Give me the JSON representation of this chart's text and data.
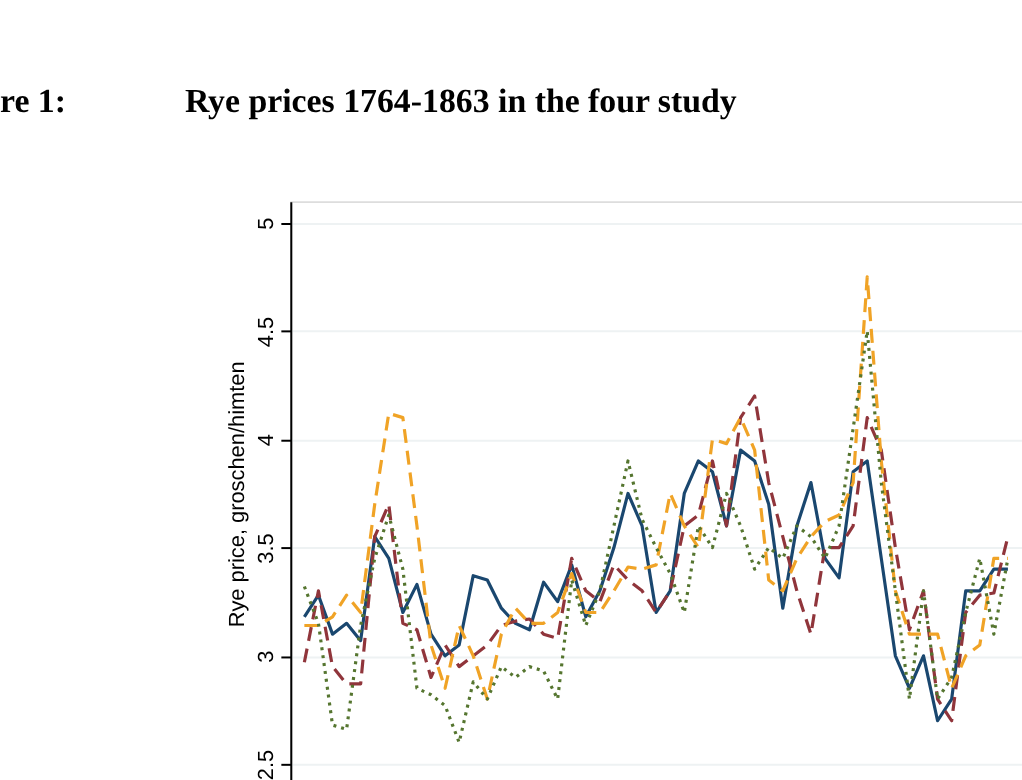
{
  "chart_data": {
    "type": "line",
    "title": "Rye prices 1764-1863 in the four study",
    "annotations": [
      "re 1:"
    ],
    "ylabel": "Rye price, groschen/himten",
    "categories": [
      null,
      null,
      null,
      null,
      null,
      null,
      null,
      null,
      null,
      null,
      null,
      null,
      null,
      null,
      null,
      null,
      null,
      null,
      null,
      null,
      null,
      null,
      null,
      null,
      null,
      null,
      null,
      null,
      null,
      null,
      null,
      null,
      null,
      null,
      null,
      null,
      null,
      null,
      null,
      null,
      null,
      null,
      null,
      null,
      null,
      null,
      null,
      null,
      null,
      null,
      null
    ],
    "series": [
      {
        "color": "#1a476f",
        "line_style": "solid",
        "values": [
          3.18,
          3.28,
          3.1,
          3.15,
          3.07,
          3.55,
          3.45,
          3.2,
          3.33,
          3.1,
          3.0,
          3.05,
          3.37,
          3.35,
          3.22,
          3.15,
          3.12,
          3.34,
          3.25,
          3.42,
          3.18,
          3.3,
          3.5,
          3.75,
          3.6,
          3.2,
          3.3,
          3.75,
          3.9,
          3.85,
          3.6,
          3.95,
          3.9,
          3.7,
          3.22,
          3.6,
          3.8,
          3.45,
          3.36,
          3.85,
          3.9,
          3.45,
          3.0,
          2.85,
          3.0,
          2.7,
          2.8,
          3.3,
          3.3,
          3.4,
          3.4
        ]
      },
      {
        "color": "#90353b",
        "line_style": "dashed",
        "values": [
          2.97,
          3.3,
          2.95,
          2.87,
          2.87,
          3.55,
          3.7,
          3.15,
          3.12,
          2.9,
          3.05,
          2.95,
          3.0,
          3.05,
          3.14,
          3.16,
          3.17,
          3.1,
          3.08,
          3.45,
          3.3,
          3.25,
          3.42,
          3.35,
          3.3,
          3.2,
          3.3,
          3.6,
          3.65,
          3.9,
          3.6,
          4.1,
          4.2,
          3.8,
          3.55,
          3.3,
          3.1,
          3.5,
          3.5,
          3.6,
          4.1,
          3.95,
          3.5,
          3.12,
          3.3,
          2.8,
          2.7,
          3.2,
          3.28,
          3.29,
          3.55
        ]
      },
      {
        "color": "#f0a326",
        "line_style": "dashed",
        "values": [
          3.14,
          3.14,
          3.18,
          3.28,
          3.2,
          3.7,
          4.12,
          4.1,
          3.6,
          3.05,
          2.85,
          3.14,
          3.0,
          2.8,
          3.1,
          3.22,
          3.15,
          3.15,
          3.2,
          3.38,
          3.2,
          3.2,
          3.3,
          3.41,
          3.4,
          3.42,
          3.75,
          3.6,
          3.5,
          4.0,
          3.98,
          4.1,
          3.95,
          3.35,
          3.3,
          3.45,
          3.55,
          3.62,
          3.65,
          3.8,
          4.75,
          3.9,
          3.3,
          3.1,
          3.1,
          3.1,
          2.85,
          3.0,
          3.05,
          3.45,
          3.45
        ]
      },
      {
        "color": "#55752f",
        "line_style": "dotted",
        "values": [
          3.32,
          3.15,
          2.68,
          2.66,
          3.14,
          3.45,
          3.65,
          3.4,
          2.85,
          2.82,
          2.77,
          2.6,
          2.88,
          2.8,
          2.95,
          2.9,
          2.95,
          2.93,
          2.8,
          3.35,
          3.14,
          3.3,
          3.6,
          3.9,
          3.63,
          3.5,
          3.38,
          3.2,
          3.6,
          3.5,
          3.75,
          3.6,
          3.4,
          3.5,
          3.45,
          3.6,
          3.55,
          3.45,
          3.6,
          4.05,
          4.5,
          3.8,
          3.3,
          2.8,
          3.3,
          2.8,
          2.9,
          3.2,
          3.45,
          3.1,
          3.45
        ]
      }
    ],
    "ylim": [
      2.4,
      5.1
    ],
    "yticks": [
      2.5,
      3,
      3.5,
      4,
      4.5,
      5
    ],
    "grid": "y",
    "tick_labels": "y"
  }
}
